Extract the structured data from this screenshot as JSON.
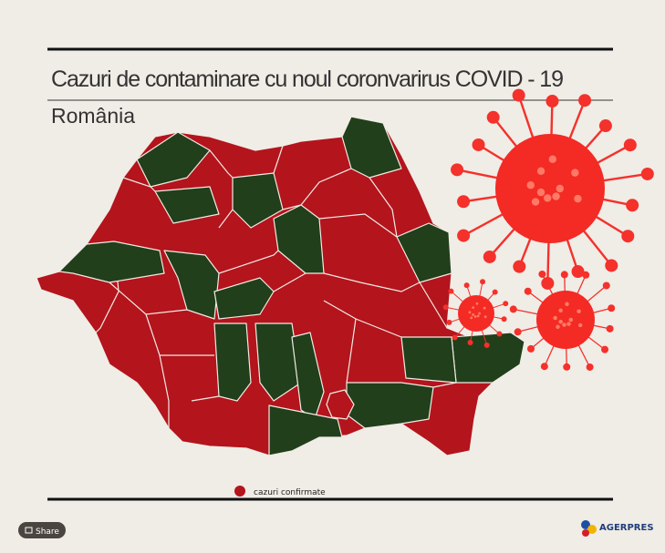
{
  "header": {
    "title": "Cazuri de contaminare cu noul coronvarirus COVID - 19",
    "subtitle": "România"
  },
  "legend": {
    "label": "cazuri confirmate"
  },
  "share": "Share",
  "logo": "AGERPRES"
}
